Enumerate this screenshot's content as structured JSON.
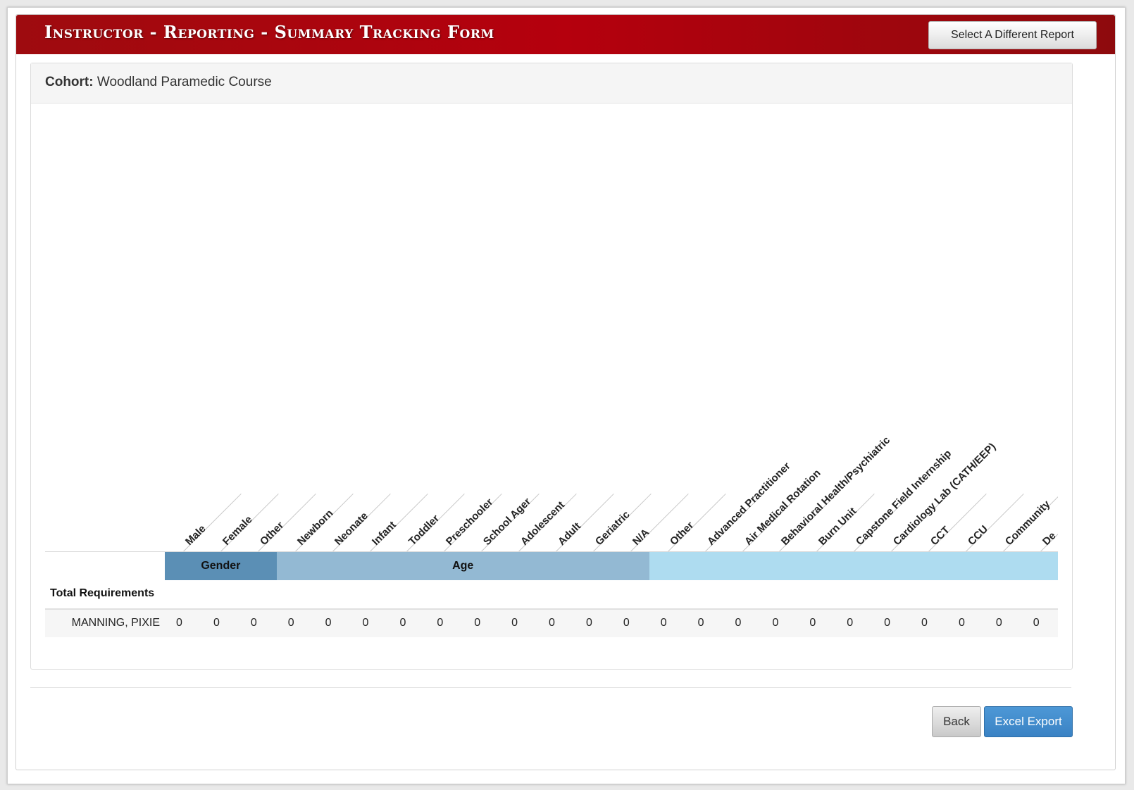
{
  "header": {
    "title": "Instructor - Reporting - Summary Tracking Form",
    "select_report_label": "Select A Different Report"
  },
  "cohort": {
    "label": "Cohort:",
    "value": "Woodland Paramedic Course"
  },
  "columns": [
    "Male",
    "Female",
    "Other",
    "Newborn",
    "Neonate",
    "Infant",
    "Toddler",
    "Preschooler",
    "School Ager",
    "Adolescent",
    "Adult",
    "Geriatric",
    "N/A",
    "Other",
    "Advanced Practitioner",
    "Air Medical Rotation",
    "Behavioral Health/Psychiatric",
    "Burn Unit",
    "Capstone Field Internship",
    "Cardiology Lab (CATH/EEP)",
    "CCT",
    "CCU",
    "Community",
    "De"
  ],
  "groups": [
    {
      "label": "Gender",
      "span": 3,
      "color": "#5b8fb5"
    },
    {
      "label": "Age",
      "span": 10,
      "color": "#93b9d3"
    },
    {
      "label": "",
      "span": 11,
      "color": "#aedcf0"
    }
  ],
  "table": {
    "total_requirements_label": "Total Requirements",
    "rows": [
      {
        "name": "MANNING, PIXIE",
        "values": [
          "0",
          "0",
          "0",
          "0",
          "0",
          "0",
          "0",
          "0",
          "0",
          "0",
          "0",
          "0",
          "0",
          "0",
          "0",
          "0",
          "0",
          "0",
          "0",
          "0",
          "0",
          "0",
          "0",
          "0"
        ]
      }
    ]
  },
  "footer": {
    "back_label": "Back",
    "export_label": "Excel Export"
  }
}
